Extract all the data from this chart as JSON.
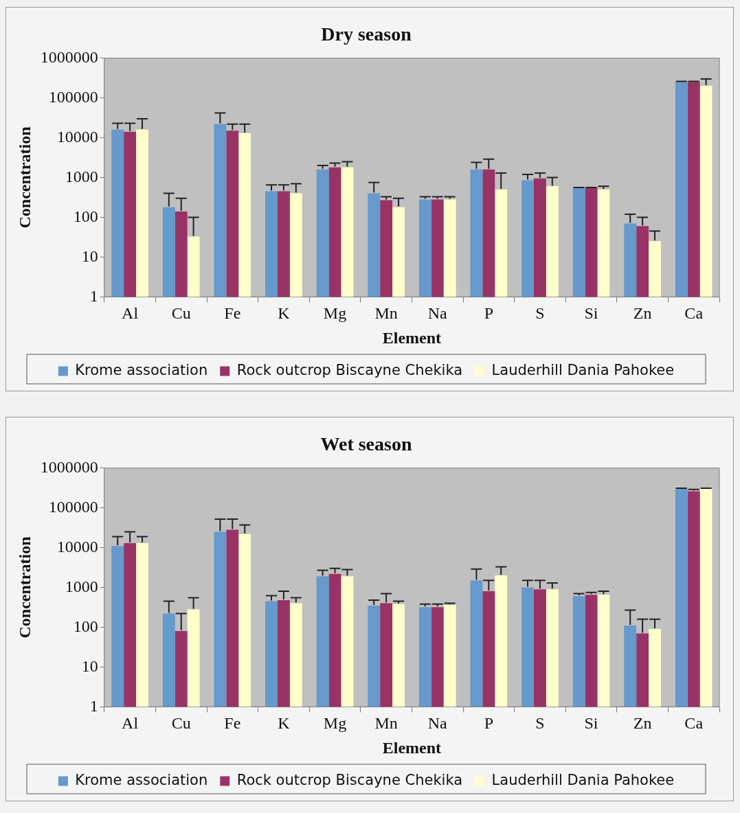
{
  "chart_data": [
    {
      "type": "bar",
      "title": "Dry season",
      "xlabel": "Element",
      "ylabel": "Concentration",
      "log": "y",
      "grid": false,
      "legend": "bottom",
      "ylim": [
        1,
        1000000
      ],
      "yticks": [
        1,
        10,
        100,
        1000,
        10000,
        100000,
        1000000
      ],
      "categories": [
        "Al",
        "Cu",
        "Fe",
        "K",
        "Mg",
        "Mn",
        "Na",
        "P",
        "S",
        "Si",
        "Zn",
        "Ca"
      ],
      "series": [
        {
          "name": "Krome association",
          "color": "#6699cc",
          "values": [
            16000,
            180,
            22000,
            450,
            1600,
            400,
            280,
            1600,
            850,
            550,
            70,
            250000
          ],
          "errors": [
            [
              16000,
              23000
            ],
            [
              180,
              400
            ],
            [
              22000,
              42000
            ],
            [
              450,
              650
            ],
            [
              1600,
              2000
            ],
            [
              400,
              750
            ],
            [
              280,
              330
            ],
            [
              1600,
              2400
            ],
            [
              850,
              1200
            ],
            [
              550,
              560
            ],
            [
              70,
              120
            ],
            [
              250000,
              260000
            ]
          ]
        },
        {
          "name": "Rock outcrop Biscayne Chekika",
          "color": "#993366",
          "values": [
            14000,
            140,
            15000,
            450,
            1800,
            270,
            280,
            1600,
            950,
            550,
            60,
            250000
          ],
          "errors": [
            [
              14000,
              23000
            ],
            [
              140,
              300
            ],
            [
              15000,
              22000
            ],
            [
              450,
              650
            ],
            [
              1800,
              2300
            ],
            [
              270,
              330
            ],
            [
              280,
              330
            ],
            [
              1600,
              2900
            ],
            [
              950,
              1300
            ],
            [
              550,
              560
            ],
            [
              60,
              100
            ],
            [
              250000,
              260000
            ]
          ]
        },
        {
          "name": "Lauderhill Dania Pahokee",
          "color": "#ffffcc",
          "values": [
            16000,
            33,
            13000,
            400,
            1800,
            180,
            280,
            500,
            600,
            500,
            25,
            200000
          ],
          "errors": [
            [
              16000,
              30000
            ],
            [
              33,
              100
            ],
            [
              13000,
              22000
            ],
            [
              400,
              700
            ],
            [
              1800,
              2500
            ],
            [
              180,
              300
            ],
            [
              280,
              330
            ],
            [
              500,
              1300
            ],
            [
              600,
              1000
            ],
            [
              500,
              600
            ],
            [
              25,
              45
            ],
            [
              200000,
              300000
            ]
          ]
        }
      ]
    },
    {
      "type": "bar",
      "title": "Wet season",
      "xlabel": "Element",
      "ylabel": "Concentration",
      "log": "y",
      "grid": false,
      "legend": "bottom",
      "ylim": [
        1,
        1000000
      ],
      "yticks": [
        1,
        10,
        100,
        1000,
        10000,
        100000,
        1000000
      ],
      "categories": [
        "Al",
        "Cu",
        "Fe",
        "K",
        "Mg",
        "Mn",
        "Na",
        "P",
        "S",
        "Si",
        "Zn",
        "Ca"
      ],
      "series": [
        {
          "name": "Krome association",
          "color": "#6699cc",
          "values": [
            11000,
            220,
            25000,
            450,
            1900,
            350,
            320,
            1500,
            1000,
            600,
            110,
            300000
          ],
          "errors": [
            [
              11000,
              19000
            ],
            [
              220,
              450
            ],
            [
              25000,
              52000
            ],
            [
              450,
              620
            ],
            [
              1900,
              2700
            ],
            [
              350,
              480
            ],
            [
              320,
              380
            ],
            [
              1500,
              2900
            ],
            [
              1000,
              1500
            ],
            [
              600,
              700
            ],
            [
              110,
              270
            ],
            [
              300000,
              310000
            ]
          ]
        },
        {
          "name": "Rock outcrop Biscayne Chekika",
          "color": "#993366",
          "values": [
            13000,
            80,
            28000,
            480,
            2200,
            400,
            320,
            800,
            900,
            650,
            70,
            260000
          ],
          "errors": [
            [
              13000,
              25000
            ],
            [
              80,
              220
            ],
            [
              28000,
              52000
            ],
            [
              480,
              800
            ],
            [
              2200,
              3000
            ],
            [
              400,
              700
            ],
            [
              320,
              380
            ],
            [
              800,
              1500
            ],
            [
              900,
              1500
            ],
            [
              650,
              750
            ],
            [
              70,
              160
            ],
            [
              260000,
              290000
            ]
          ]
        },
        {
          "name": "Lauderhill Dania Pahokee",
          "color": "#ffffcc",
          "values": [
            13000,
            280,
            22000,
            400,
            1900,
            380,
            360,
            2000,
            900,
            650,
            90,
            300000
          ],
          "errors": [
            [
              13000,
              19000
            ],
            [
              280,
              550
            ],
            [
              22000,
              37000
            ],
            [
              400,
              550
            ],
            [
              1900,
              2800
            ],
            [
              380,
              450
            ],
            [
              360,
              400
            ],
            [
              2000,
              3300
            ],
            [
              900,
              1300
            ],
            [
              650,
              800
            ],
            [
              90,
              160
            ],
            [
              300000,
              310000
            ]
          ]
        }
      ]
    }
  ]
}
